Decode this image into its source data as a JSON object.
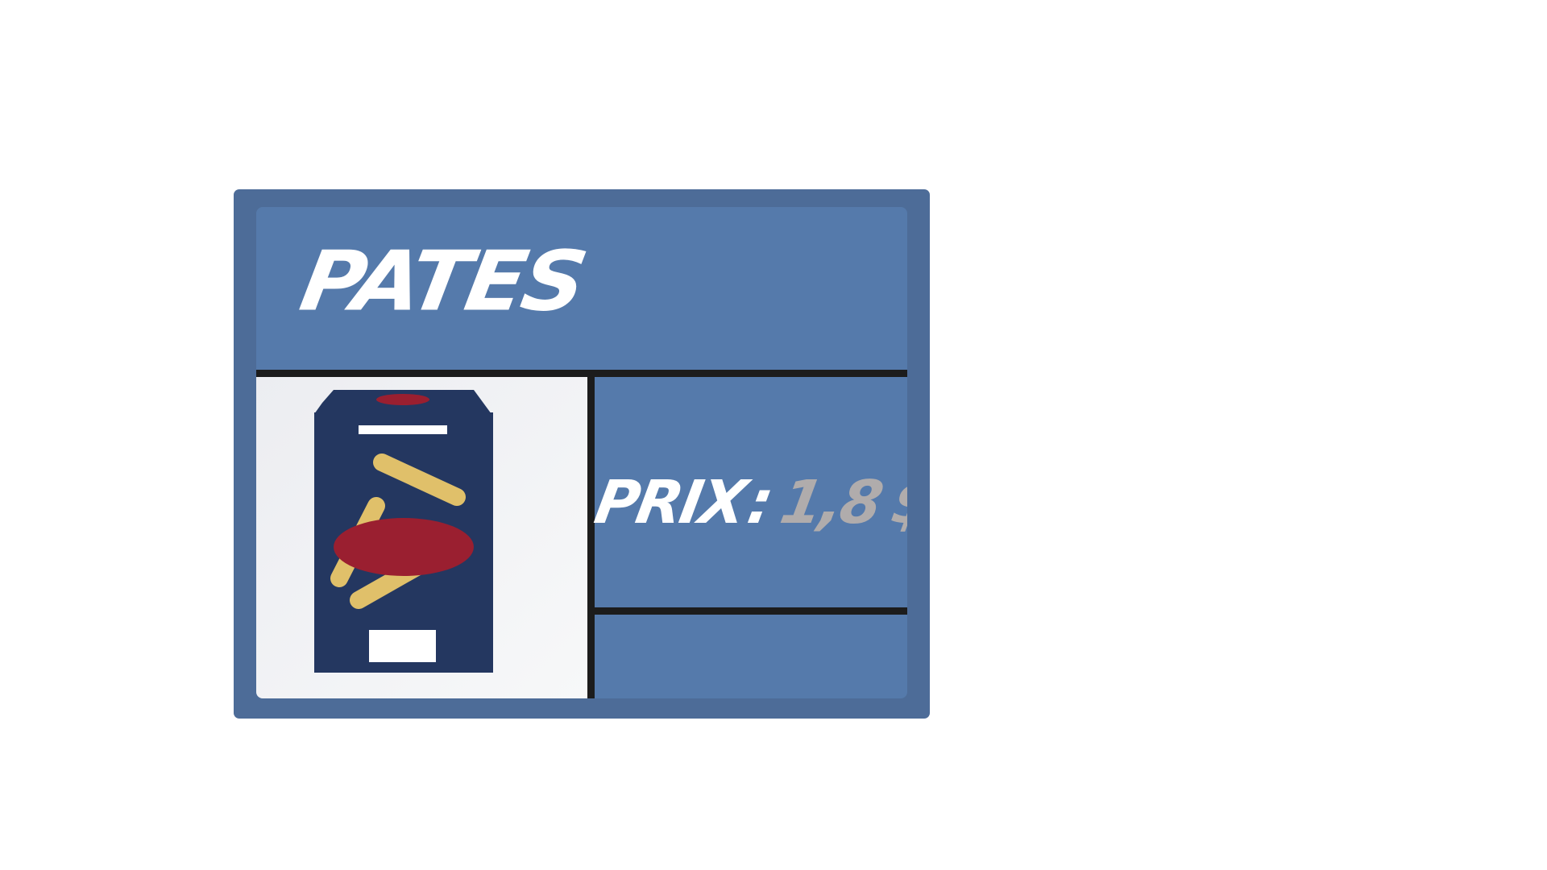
{
  "card": {
    "title": "PATES",
    "price": {
      "label": "PRIX",
      "separator": ":",
      "value": "1,8",
      "currency": "$"
    }
  },
  "colors": {
    "card_frame": "#4d6c98",
    "card_inner": "#557aab",
    "divider": "#1c1c1c",
    "box_navy": "#243760",
    "box_red": "#9a1f30",
    "pasta_yellow": "#e0c06a",
    "price_value": "#b0acac"
  },
  "icons": {
    "product_image": "pasta-box-icon"
  }
}
